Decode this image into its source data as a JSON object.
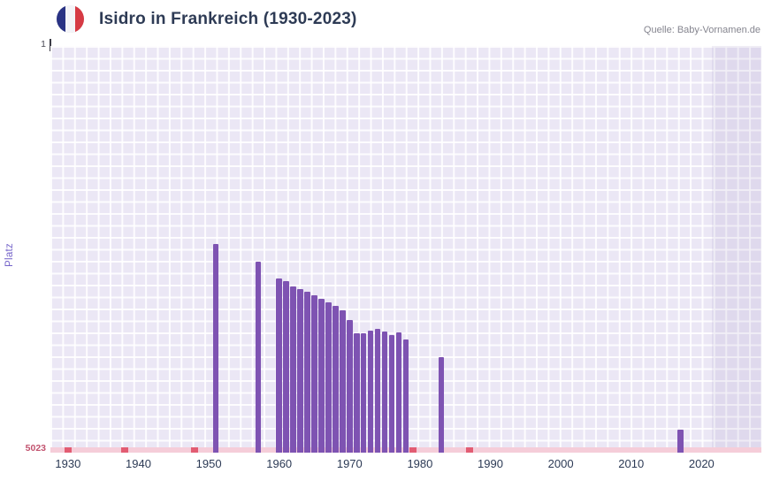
{
  "header": {
    "title": "Isidro in Frankreich (1930-2023)",
    "source": "Quelle: Baby-Vornamen.de",
    "flag_name": "flag-france",
    "flag_colors": [
      "#2a3384",
      "#f4f4f8",
      "#d63a44"
    ]
  },
  "axes": {
    "y_label": "Platz",
    "y_top": "1",
    "y_bottom": "5023",
    "x_ticks": [
      "1930",
      "1940",
      "1950",
      "1960",
      "1970",
      "1980",
      "1990",
      "2000",
      "2010",
      "2020"
    ]
  },
  "chart_data": {
    "type": "bar",
    "title": "Isidro in Frankreich (1930-2023)",
    "xlabel": "",
    "ylabel": "Platz",
    "y_axis": {
      "min": 1,
      "max": 5023,
      "inverted": true
    },
    "x_domain": [
      1927.5,
      2028.5
    ],
    "grid": true,
    "bars": [
      {
        "year": 1951,
        "rank": 2450
      },
      {
        "year": 1957,
        "rank": 2665
      },
      {
        "year": 1960,
        "rank": 2870
      },
      {
        "year": 1961,
        "rank": 2905
      },
      {
        "year": 1962,
        "rank": 2975
      },
      {
        "year": 1963,
        "rank": 3005
      },
      {
        "year": 1964,
        "rank": 3035
      },
      {
        "year": 1965,
        "rank": 3075
      },
      {
        "year": 1966,
        "rank": 3120
      },
      {
        "year": 1967,
        "rank": 3165
      },
      {
        "year": 1968,
        "rank": 3210
      },
      {
        "year": 1969,
        "rank": 3265
      },
      {
        "year": 1970,
        "rank": 3390
      },
      {
        "year": 1971,
        "rank": 3545
      },
      {
        "year": 1972,
        "rank": 3545
      },
      {
        "year": 1973,
        "rank": 3515
      },
      {
        "year": 1974,
        "rank": 3490
      },
      {
        "year": 1975,
        "rank": 3530
      },
      {
        "year": 1976,
        "rank": 3575
      },
      {
        "year": 1977,
        "rank": 3535
      },
      {
        "year": 1978,
        "rank": 3630
      },
      {
        "year": 1983,
        "rank": 3845
      },
      {
        "year": 2017,
        "rank": 4740
      }
    ],
    "unranked_band_full_width": true,
    "unranked_marker_years": [
      1930,
      1938,
      1948,
      1979,
      1987
    ],
    "highlight_from_year": 2021.5,
    "colors": {
      "bar": "#7e53b2",
      "plot_background": "#ebe7f5",
      "grid_line": "#ffffff",
      "unranked_band": "#f5cdd9",
      "unranked_marker": "#e25c72",
      "highlight_band": "rgba(113,96,165,0.10)"
    }
  }
}
